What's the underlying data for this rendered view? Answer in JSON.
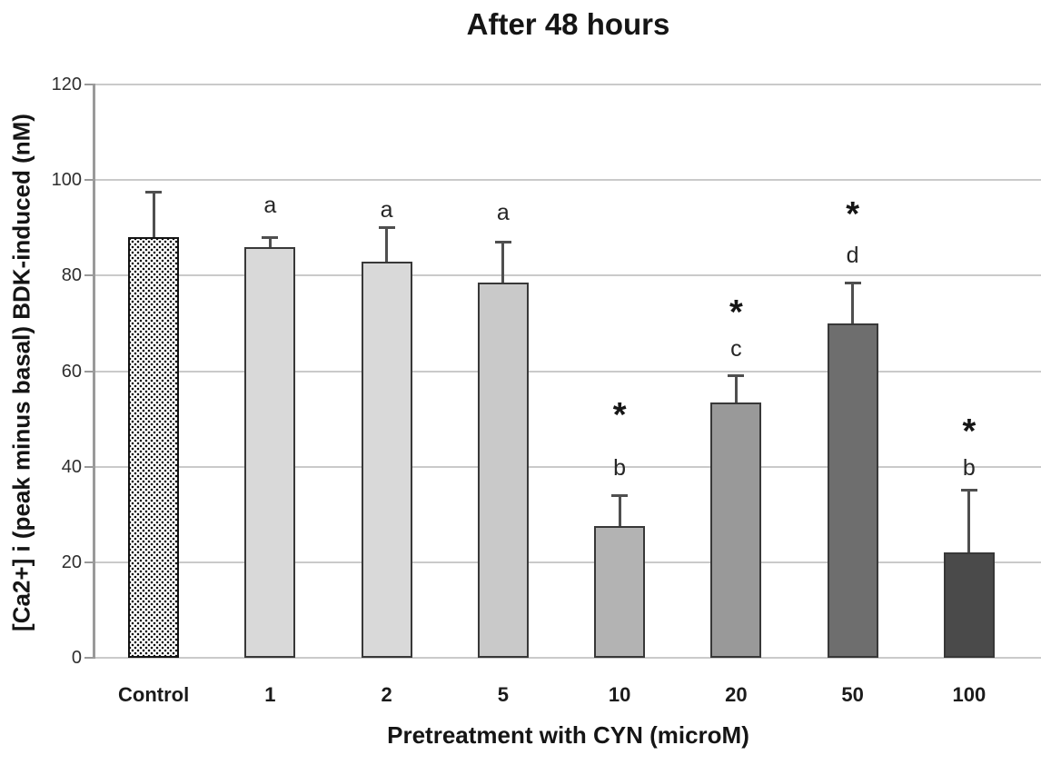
{
  "chart_data": {
    "type": "bar",
    "title": "After 48 hours",
    "xlabel": "Pretreatment with CYN (microM)",
    "ylabel": "[Ca2+] i (peak minus basal) BDK-induced (nM)",
    "ylim": [
      0,
      120
    ],
    "yticks": [
      0,
      20,
      40,
      60,
      80,
      100,
      120
    ],
    "grid": "horizontal gridlines at every 20 units",
    "legend": "none",
    "categories": [
      "Control",
      "1",
      "2",
      "5",
      "10",
      "20",
      "50",
      "100"
    ],
    "values": [
      88,
      86,
      83,
      78.5,
      27.5,
      53.5,
      70,
      22
    ],
    "error_upper": [
      97.5,
      88,
      90,
      87,
      34,
      59,
      78.5,
      35
    ],
    "bar_fills": [
      "dotted-pattern",
      "#d9d9d9",
      "#d9d9d9",
      "#c9c9c9",
      "#b3b3b3",
      "#999999",
      "#6e6e6e",
      "#4a4a4a"
    ],
    "pattern_note": "Control bar is white with a dense black dot stipple pattern",
    "annotations": [
      {
        "category": "1",
        "letter": "a",
        "letter_y": 94.5
      },
      {
        "category": "2",
        "letter": "a",
        "letter_y": 93.5
      },
      {
        "category": "5",
        "letter": "a",
        "letter_y": 93
      },
      {
        "category": "10",
        "star": true,
        "star_y": 52,
        "letter": "b",
        "letter_y": 39.5
      },
      {
        "category": "20",
        "star": true,
        "star_y": 73.5,
        "letter": "c",
        "letter_y": 64.5
      },
      {
        "category": "50",
        "star": true,
        "star_y": 94,
        "letter": "d",
        "letter_y": 84
      },
      {
        "category": "100",
        "star": true,
        "star_y": 48.5,
        "letter": "b",
        "letter_y": 39.5
      }
    ]
  },
  "colors": {
    "background": "#ffffff",
    "gridline": "#cacaca",
    "axis_line": "#9a9a9a",
    "error_bar": "#4f4f4f",
    "bar_border": "#383838",
    "text": "#151515"
  }
}
